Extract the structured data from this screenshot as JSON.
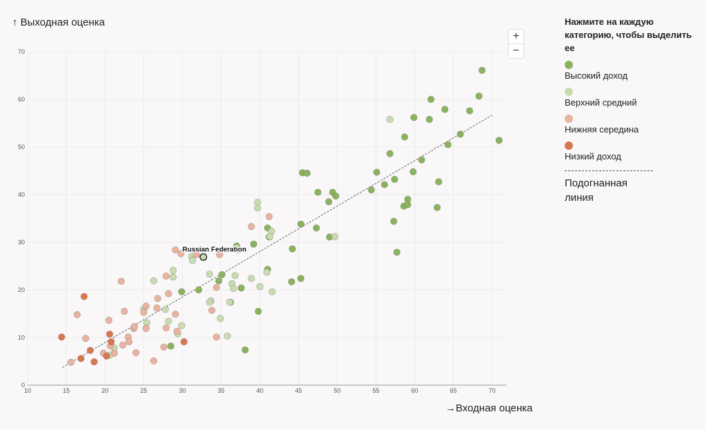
{
  "ylabel": "↑ Выходная оценка",
  "xlabel": "→Входная оценка",
  "zoom": {
    "plus": "+",
    "minus": "−"
  },
  "legend": {
    "title": "Нажмите на каждую категорию, чтобы выделить ее",
    "items": [
      {
        "label": "Высокий доход",
        "color": "#8bb35f"
      },
      {
        "label": "Верхний средний",
        "color": "#c8dcb0"
      },
      {
        "label": "Нижняя середина",
        "color": "#e8b4a0"
      },
      {
        "label": "Низкий доход",
        "color": "#d77750"
      }
    ],
    "fit_label": "Подогнанная линия"
  },
  "chart_data": {
    "type": "scatter",
    "xlim": [
      10,
      71
    ],
    "ylim": [
      0,
      70
    ],
    "xticks": [
      10,
      15,
      20,
      25,
      30,
      35,
      40,
      45,
      50,
      55,
      60,
      65,
      70
    ],
    "yticks": [
      0,
      10,
      20,
      30,
      40,
      50,
      60,
      70
    ],
    "grid": true,
    "fit_line": {
      "x": [
        14.5,
        70
      ],
      "y": [
        3.7,
        56.7
      ]
    },
    "annotation": {
      "label": "Russian Federation",
      "x": 32.7,
      "y": 26.9
    },
    "series": [
      {
        "name": "Высокий доход",
        "color": "#8bb35f",
        "points": [
          [
            68.7,
            66.1
          ],
          [
            68.3,
            60.7
          ],
          [
            62.1,
            60.0
          ],
          [
            63.9,
            57.9
          ],
          [
            67.1,
            57.6
          ],
          [
            59.9,
            56.2
          ],
          [
            61.9,
            55.8
          ],
          [
            58.7,
            52.1
          ],
          [
            65.9,
            52.7
          ],
          [
            70.9,
            51.4
          ],
          [
            64.3,
            50.5
          ],
          [
            56.8,
            48.6
          ],
          [
            60.9,
            47.3
          ],
          [
            55.1,
            44.7
          ],
          [
            59.8,
            44.8
          ],
          [
            45.5,
            44.6
          ],
          [
            46.1,
            44.5
          ],
          [
            57.4,
            43.2
          ],
          [
            56.1,
            42.1
          ],
          [
            63.1,
            42.7
          ],
          [
            54.4,
            41.0
          ],
          [
            47.5,
            40.5
          ],
          [
            49.4,
            40.5
          ],
          [
            49.8,
            39.7
          ],
          [
            59.1,
            39.0
          ],
          [
            48.9,
            38.5
          ],
          [
            58.6,
            37.6
          ],
          [
            59.1,
            37.9
          ],
          [
            62.9,
            37.3
          ],
          [
            57.3,
            34.4
          ],
          [
            45.3,
            33.8
          ],
          [
            47.3,
            33.0
          ],
          [
            41.0,
            33.0
          ],
          [
            41.2,
            31.1
          ],
          [
            49.0,
            31.1
          ],
          [
            39.2,
            29.6
          ],
          [
            37.0,
            29.2
          ],
          [
            44.2,
            28.6
          ],
          [
            57.7,
            27.9
          ],
          [
            41.0,
            24.3
          ],
          [
            35.1,
            23.2
          ],
          [
            45.3,
            22.4
          ],
          [
            34.7,
            21.9
          ],
          [
            44.1,
            21.7
          ],
          [
            37.6,
            20.4
          ],
          [
            32.1,
            20.0
          ],
          [
            29.9,
            19.6
          ],
          [
            36.2,
            17.4
          ],
          [
            39.8,
            15.5
          ],
          [
            28.5,
            8.2
          ],
          [
            38.1,
            7.4
          ]
        ]
      },
      {
        "name": "Верхний средний",
        "color": "#c8dcb0",
        "points": [
          [
            56.8,
            55.8
          ],
          [
            39.7,
            38.4
          ],
          [
            39.7,
            37.2
          ],
          [
            41.5,
            32.3
          ],
          [
            49.7,
            31.2
          ],
          [
            41.3,
            31.2
          ],
          [
            37.2,
            28.4
          ],
          [
            31.2,
            27.0
          ],
          [
            31.3,
            26.2
          ],
          [
            33.5,
            23.3
          ],
          [
            40.9,
            23.7
          ],
          [
            36.8,
            23.0
          ],
          [
            28.8,
            24.1
          ],
          [
            26.3,
            21.9
          ],
          [
            28.8,
            22.7
          ],
          [
            40.0,
            20.7
          ],
          [
            38.9,
            22.4
          ],
          [
            36.4,
            21.3
          ],
          [
            36.6,
            20.3
          ],
          [
            41.6,
            19.6
          ],
          [
            33.7,
            17.7
          ],
          [
            33.5,
            17.4
          ],
          [
            36.1,
            17.4
          ],
          [
            27.8,
            15.9
          ],
          [
            25.0,
            16.0
          ],
          [
            28.2,
            13.4
          ],
          [
            34.9,
            14.0
          ],
          [
            25.4,
            13.1
          ],
          [
            29.9,
            12.5
          ],
          [
            29.4,
            10.8
          ],
          [
            35.8,
            10.3
          ],
          [
            21.2,
            7.8
          ],
          [
            20.6,
            6.3
          ]
        ]
      },
      {
        "name": "Нижняя середина",
        "color": "#e8b4a0",
        "points": [
          [
            41.2,
            35.4
          ],
          [
            38.9,
            33.3
          ],
          [
            29.1,
            28.4
          ],
          [
            29.8,
            27.6
          ],
          [
            31.8,
            27.4
          ],
          [
            34.8,
            27.4
          ],
          [
            27.9,
            22.9
          ],
          [
            22.1,
            21.8
          ],
          [
            34.4,
            20.5
          ],
          [
            26.8,
            18.2
          ],
          [
            28.2,
            19.2
          ],
          [
            22.5,
            15.5
          ],
          [
            25.3,
            16.6
          ],
          [
            33.8,
            15.7
          ],
          [
            26.7,
            16.2
          ],
          [
            16.4,
            14.8
          ],
          [
            29.1,
            14.9
          ],
          [
            20.5,
            13.6
          ],
          [
            25.0,
            15.3
          ],
          [
            23.7,
            11.9
          ],
          [
            25.3,
            11.9
          ],
          [
            23.8,
            12.3
          ],
          [
            23.0,
            10.1
          ],
          [
            27.9,
            12.0
          ],
          [
            17.5,
            9.8
          ],
          [
            29.3,
            11.3
          ],
          [
            22.3,
            8.4
          ],
          [
            23.1,
            9.1
          ],
          [
            34.4,
            10.1
          ],
          [
            20.7,
            8.2
          ],
          [
            27.6,
            8.0
          ],
          [
            24.0,
            6.8
          ],
          [
            21.2,
            6.7
          ],
          [
            19.8,
            6.7
          ],
          [
            26.3,
            5.1
          ],
          [
            15.6,
            4.8
          ]
        ]
      },
      {
        "name": "Низкий доход",
        "color": "#d77750",
        "points": [
          [
            17.3,
            18.6
          ],
          [
            14.4,
            10.1
          ],
          [
            20.6,
            10.7
          ],
          [
            20.8,
            9.1
          ],
          [
            30.2,
            9.1
          ],
          [
            18.1,
            7.3
          ],
          [
            16.9,
            5.6
          ],
          [
            20.2,
            6.1
          ],
          [
            18.6,
            4.9
          ]
        ]
      }
    ]
  }
}
